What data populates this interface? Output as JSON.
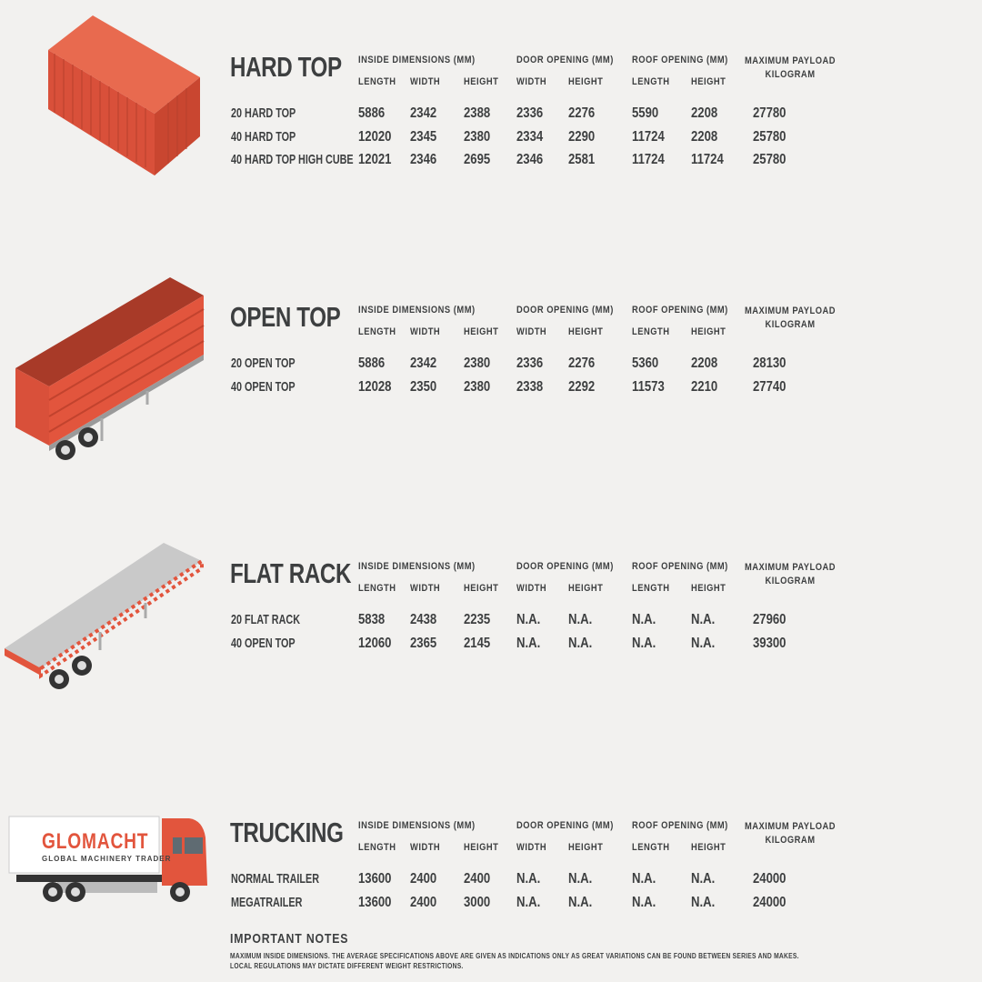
{
  "colors": {
    "accent": "#e2553d",
    "text": "#3d3f40",
    "background": "#f2f1ef"
  },
  "column_groups": {
    "inside": "INSIDE DIMENSIONS (MM)",
    "door": "DOOR OPENING (MM)",
    "roof": "ROOF OPENING (MM)",
    "payload_line1": "MAXIMUM PAYLOAD",
    "payload_line2": "KILOGRAM"
  },
  "sub_headers": [
    "LENGTH",
    "WIDTH",
    "HEIGHT",
    "WIDTH",
    "HEIGHT",
    "LENGTH",
    "HEIGHT"
  ],
  "sections": [
    {
      "title": "HARD TOP",
      "illustration": "shipping-container",
      "rows": [
        [
          "20 HARD TOP",
          "5886",
          "2342",
          "2388",
          "2336",
          "2276",
          "5590",
          "2208",
          "27780"
        ],
        [
          "40 HARD TOP",
          "12020",
          "2345",
          "2380",
          "2334",
          "2290",
          "11724",
          "2208",
          "25780"
        ],
        [
          "40 HARD TOP HIGH CUBE",
          "12021",
          "2346",
          "2695",
          "2346",
          "2581",
          "11724",
          "11724",
          "25780"
        ]
      ]
    },
    {
      "title": "OPEN TOP",
      "illustration": "open-top-trailer",
      "rows": [
        [
          "20 OPEN TOP",
          "5886",
          "2342",
          "2380",
          "2336",
          "2276",
          "5360",
          "2208",
          "28130"
        ],
        [
          "40 OPEN TOP",
          "12028",
          "2350",
          "2380",
          "2338",
          "2292",
          "11573",
          "2210",
          "27740"
        ]
      ]
    },
    {
      "title": "FLAT RACK",
      "illustration": "flat-rack-trailer",
      "rows": [
        [
          "20 FLAT RACK",
          "5838",
          "2438",
          "2235",
          "N.A.",
          "N.A.",
          "N.A.",
          "N.A.",
          "27960"
        ],
        [
          "40 OPEN TOP",
          "12060",
          "2365",
          "2145",
          "N.A.",
          "N.A.",
          "N.A.",
          "N.A.",
          "39300"
        ]
      ]
    },
    {
      "title": "TRUCKING",
      "illustration": "truck",
      "rows": [
        [
          "NORMAL TRAILER",
          "13600",
          "2400",
          "2400",
          "N.A.",
          "N.A.",
          "N.A.",
          "N.A.",
          "24000"
        ],
        [
          "MEGATRAILER",
          "13600",
          "2400",
          "3000",
          "N.A.",
          "N.A.",
          "N.A.",
          "N.A.",
          "24000"
        ]
      ]
    }
  ],
  "logo": {
    "name": "GLOMACHT",
    "tagline": "GLOBAL MACHINERY TRADER"
  },
  "notes": {
    "title": "IMPORTANT NOTES",
    "line1": "MAXIMUM INSIDE DIMENSIONS. THE AVERAGE SPECIFICATIONS ABOVE ARE GIVEN AS INDICATIONS ONLY AS GREAT VARIATIONS CAN BE FOUND BETWEEN SERIES AND MAKES.",
    "line2": "LOCAL REGULATIONS MAY DICTATE DIFFERENT WEIGHT RESTRICTIONS."
  }
}
